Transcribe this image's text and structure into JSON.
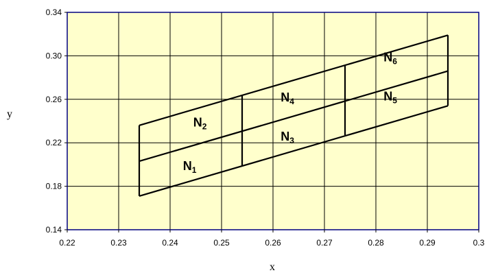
{
  "chart_data": {
    "type": "line",
    "xlabel": "x",
    "ylabel": "y",
    "xlim": [
      0.22,
      0.3
    ],
    "ylim": [
      0.14,
      0.34
    ],
    "x_ticks": [
      "0.22",
      "0.23",
      "0.24",
      "0.25",
      "0.26",
      "0.27",
      "0.28",
      "0.29",
      "0.3"
    ],
    "y_ticks": [
      "0.14",
      "0.18",
      "0.22",
      "0.26",
      "0.30",
      "0.34"
    ],
    "grid": true,
    "colors": {
      "plot_bg": "#ffffcc",
      "grid": "#000000",
      "lines": "#000000",
      "frame": "#000080"
    },
    "series": [
      {
        "x": [
          0.234,
          0.294
        ],
        "y": [
          0.171,
          0.254
        ]
      },
      {
        "x": [
          0.234,
          0.294
        ],
        "y": [
          0.203,
          0.286
        ]
      },
      {
        "x": [
          0.234,
          0.294
        ],
        "y": [
          0.236,
          0.319
        ]
      },
      {
        "x": [
          0.234,
          0.234
        ],
        "y": [
          0.171,
          0.236
        ]
      },
      {
        "x": [
          0.254,
          0.254
        ],
        "y": [
          0.199,
          0.264
        ]
      },
      {
        "x": [
          0.274,
          0.274
        ],
        "y": [
          0.227,
          0.291
        ]
      },
      {
        "x": [
          0.294,
          0.294
        ],
        "y": [
          0.254,
          0.319
        ]
      }
    ],
    "annotations": [
      {
        "main": "N",
        "sub": "1",
        "x": 0.2425,
        "y": 0.195
      },
      {
        "main": "N",
        "sub": "2",
        "x": 0.2445,
        "y": 0.235
      },
      {
        "main": "N",
        "sub": "3",
        "x": 0.2615,
        "y": 0.222
      },
      {
        "main": "N",
        "sub": "4",
        "x": 0.2615,
        "y": 0.258
      },
      {
        "main": "N",
        "sub": "5",
        "x": 0.2815,
        "y": 0.259
      },
      {
        "main": "N",
        "sub": "6",
        "x": 0.2815,
        "y": 0.295
      }
    ]
  }
}
